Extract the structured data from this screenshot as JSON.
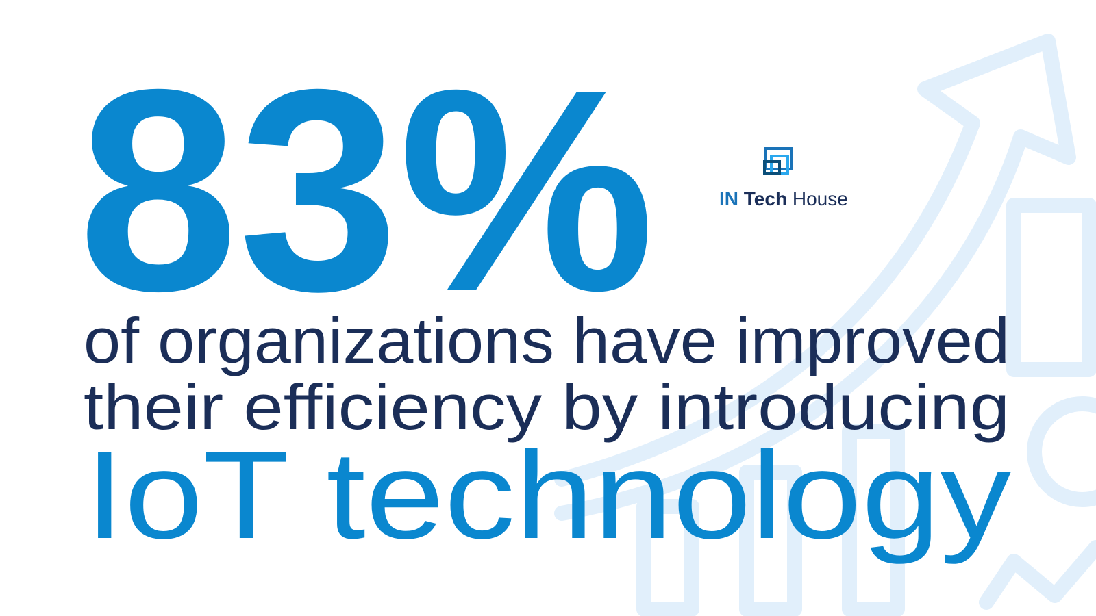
{
  "headline": {
    "stat": "83%",
    "lines": [
      "of organizations have improved",
      "their efficiency by introducing"
    ],
    "highlight": "IoT technology"
  },
  "logo": {
    "prefix": "IN",
    "middle": "Tech",
    "suffix": "House"
  }
}
